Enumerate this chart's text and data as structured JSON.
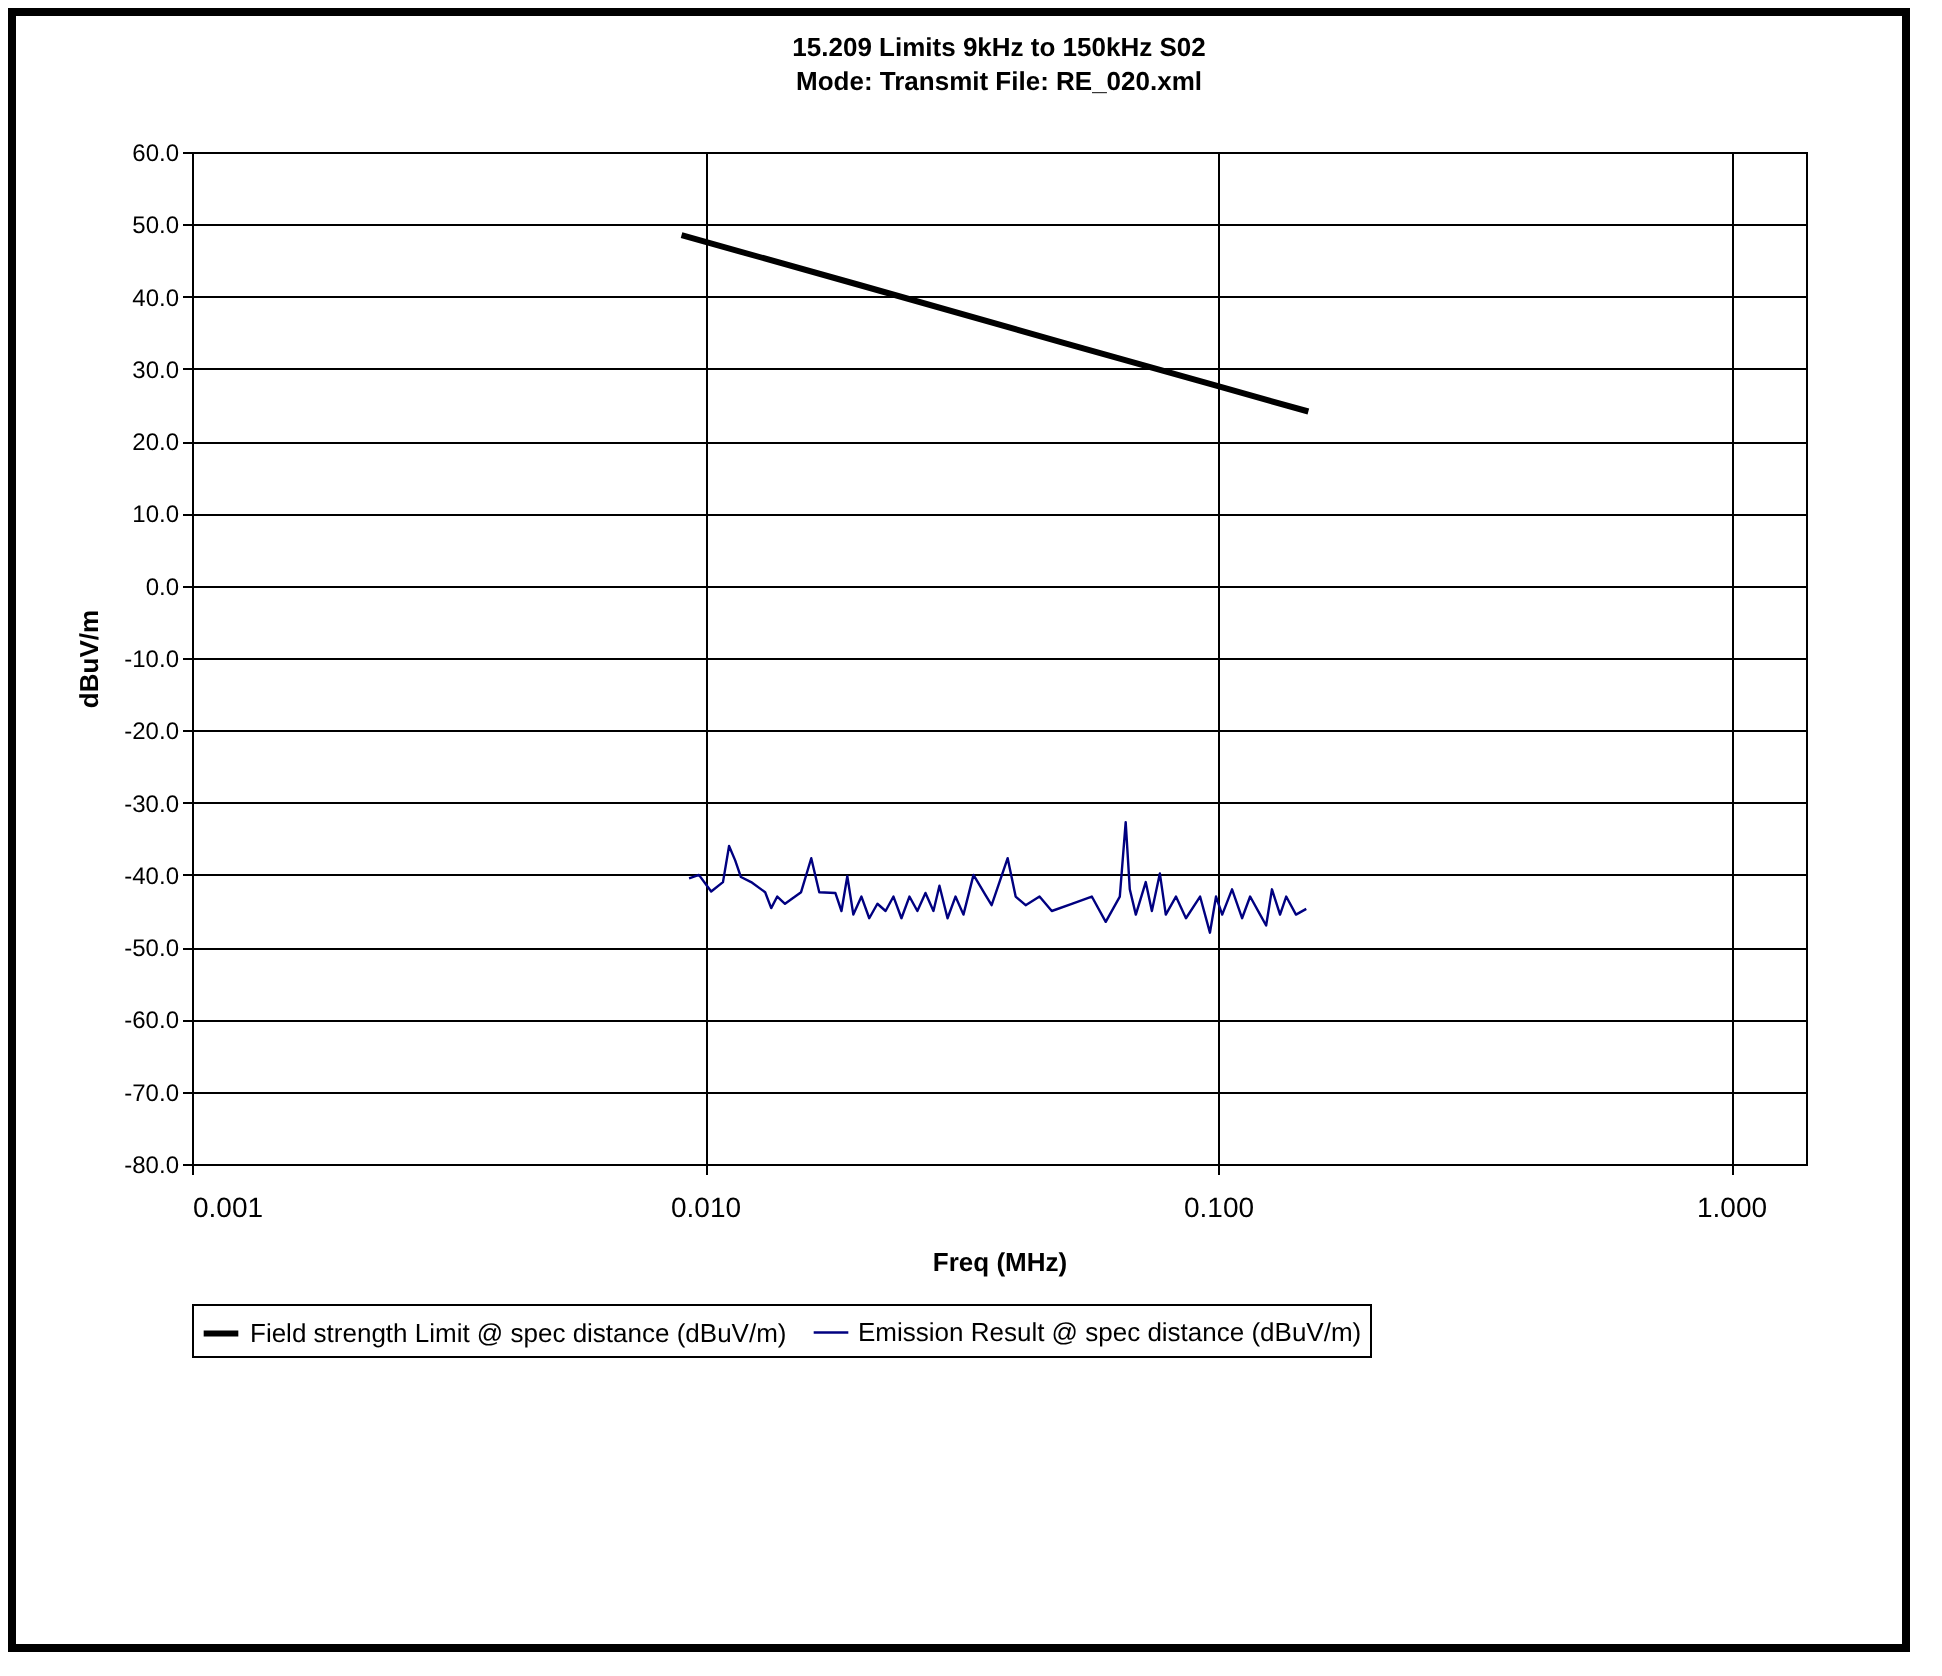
{
  "chart_data": {
    "type": "line",
    "title": "15.209 Limits 9kHz to 150kHz S02",
    "subtitle": "Mode: Transmit File: RE_020.xml",
    "xlabel": "Freq (MHz)",
    "ylabel": "dBuV/m",
    "log": "x",
    "xlim": [
      0.001,
      1.4
    ],
    "xticks": [
      {
        "value": 0.001,
        "label": "0.001"
      },
      {
        "value": 0.01,
        "label": "0.010"
      },
      {
        "value": 0.1,
        "label": "0.100"
      },
      {
        "value": 1,
        "label": "1.000"
      }
    ],
    "ylim": [
      -80,
      60
    ],
    "yticks": [
      {
        "value": -80,
        "label": "-80.0"
      },
      {
        "value": -70,
        "label": "-70.0"
      },
      {
        "value": -60,
        "label": "-60.0"
      },
      {
        "value": -50,
        "label": "-50.0"
      },
      {
        "value": -40,
        "label": "-40.0"
      },
      {
        "value": -30,
        "label": "-30.0"
      },
      {
        "value": -20,
        "label": "-20.0"
      },
      {
        "value": -10,
        "label": "-10.0"
      },
      {
        "value": 0,
        "label": "0.0"
      },
      {
        "value": 10,
        "label": "10.0"
      },
      {
        "value": 20,
        "label": "20.0"
      },
      {
        "value": 30,
        "label": "30.0"
      },
      {
        "value": 40,
        "label": "40.0"
      },
      {
        "value": 50,
        "label": "50.0"
      },
      {
        "value": 60,
        "label": "60.0"
      }
    ],
    "grid": true,
    "legend": "bottom",
    "marker": "none",
    "line_style": "solid",
    "series": [
      {
        "name": "Field strength Limit @ spec distance (dBuV/m)",
        "color": "#000000",
        "x": [
          0.009,
          0.02,
          0.05,
          0.1,
          0.15
        ],
        "values": [
          48.5,
          41.6,
          33.6,
          27.6,
          24.1
        ]
      },
      {
        "name": "Emission Result @ spec distance (dBuV/m)",
        "color": "#000080",
        "x": [
          0.00931,
          0.00973,
          0.01028,
          0.01084,
          0.01114,
          0.01145,
          0.01175,
          0.0123,
          0.0131,
          0.01346,
          0.01383,
          0.01432,
          0.01539,
          0.01611,
          0.0167,
          0.01795,
          0.01845,
          0.01894,
          0.01946,
          0.02018,
          0.0209,
          0.02168,
          0.02249,
          0.0233,
          0.02415,
          0.02503,
          0.02594,
          0.0269,
          0.02788,
          0.02864,
          0.0297,
          0.03078,
          0.0319,
          0.03337,
          0.03522,
          0.0362,
          0.0389,
          0.04032,
          0.04217,
          0.04488,
          0.04742,
          0.05188,
          0.05675,
          0.06041,
          0.06435,
          0.06607,
          0.0673,
          0.06915,
          0.07229,
          0.07431,
          0.07702,
          0.0791,
          0.08279,
          0.0866,
          0.09226,
          0.09643,
          0.09911,
          0.1019,
          0.1065,
          0.1114,
          0.1155,
          0.1208,
          0.1241,
          0.1274,
          0.1321,
          0.1358,
          0.1419,
          0.1486
        ],
        "values": [
          -40.5,
          -40,
          -42.3,
          -41,
          -36,
          -38,
          -40.3,
          -41,
          -42.4,
          -44.6,
          -43,
          -44,
          -42.4,
          -37.7,
          -42.4,
          -42.5,
          -45,
          -40.2,
          -45.5,
          -43,
          -46,
          -44,
          -45,
          -43,
          -46,
          -43,
          -45,
          -42.5,
          -45,
          -41.5,
          -46,
          -43,
          -45.5,
          -40,
          -42.8,
          -44.2,
          -37.7,
          -43,
          -44.2,
          -43,
          -45,
          -44,
          -43,
          -46.5,
          -43,
          -32.7,
          -42,
          -45.5,
          -41,
          -45,
          -39.8,
          -45.5,
          -43,
          -46,
          -43,
          -48,
          -43,
          -45.5,
          -42,
          -46,
          -43,
          -45.5,
          -47,
          -42,
          -45.5,
          -43,
          -45.5,
          -44.7
        ]
      }
    ]
  }
}
